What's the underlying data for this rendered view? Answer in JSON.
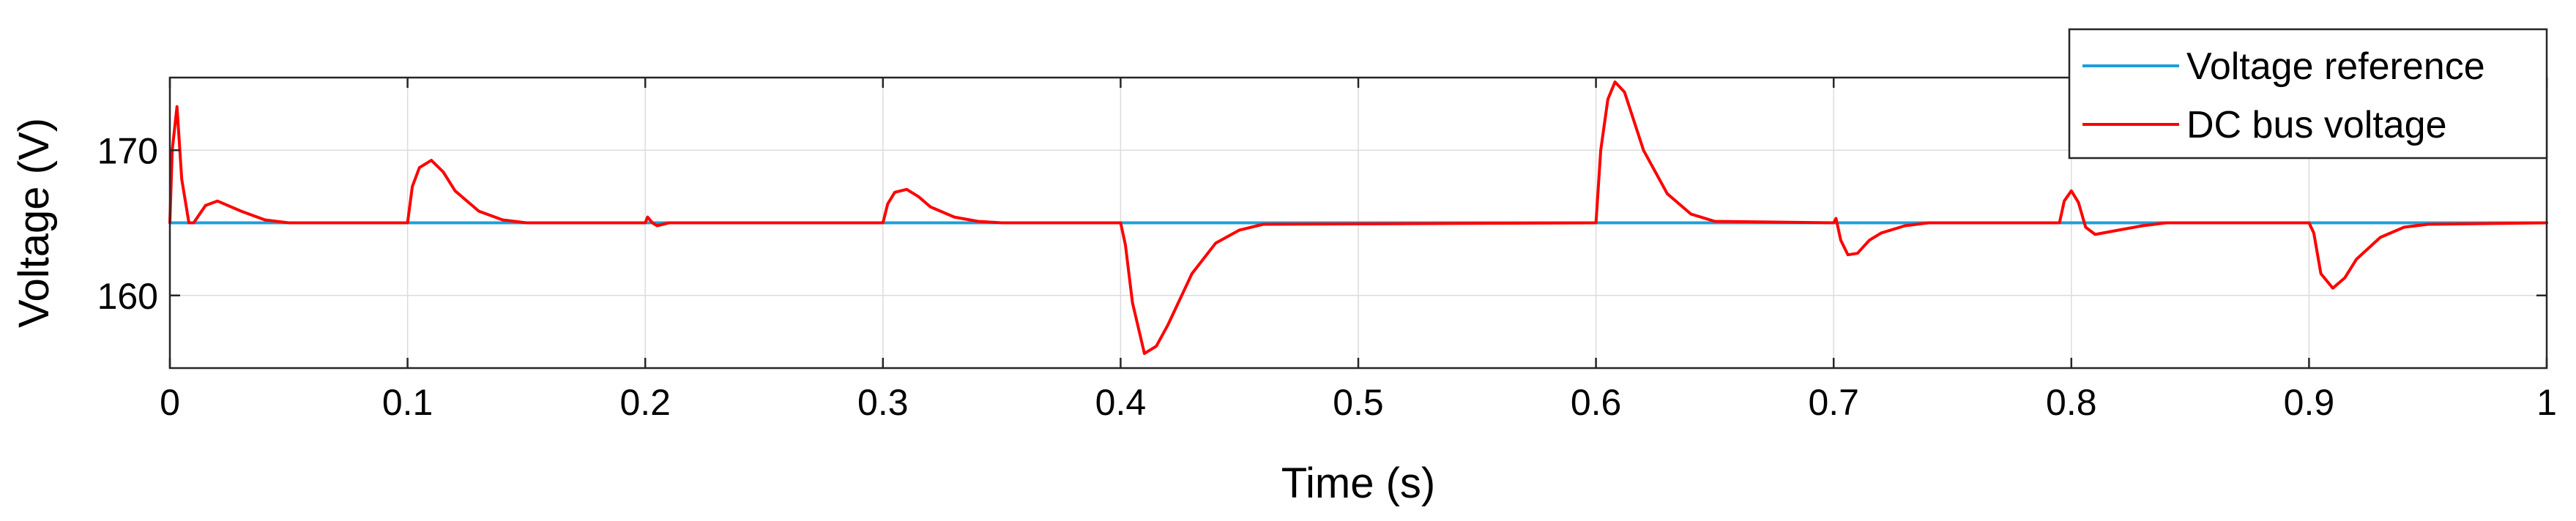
{
  "chart_data": {
    "type": "line",
    "xlabel": "Time (s)",
    "ylabel": "Voltage (V)",
    "xlim": [
      0,
      1
    ],
    "ylim": [
      155,
      175
    ],
    "grid": true,
    "legend_position": "top-right",
    "x_ticks": [
      "0",
      "0.1",
      "0.2",
      "0.3",
      "0.4",
      "0.5",
      "0.6",
      "0.7",
      "0.8",
      "0.9",
      "1"
    ],
    "y_ticks": [
      "160",
      "170"
    ],
    "series": [
      {
        "name": "Voltage reference",
        "color": "#1E9FD8",
        "x": [
          0,
          1
        ],
        "y": [
          165,
          165
        ]
      },
      {
        "name": "DC bus voltage",
        "color": "#FF0000",
        "x": [
          0,
          0.001,
          0.003,
          0.005,
          0.008,
          0.01,
          0.015,
          0.02,
          0.03,
          0.04,
          0.05,
          0.1,
          0.102,
          0.105,
          0.11,
          0.115,
          0.12,
          0.13,
          0.14,
          0.15,
          0.2,
          0.201,
          0.203,
          0.205,
          0.21,
          0.3,
          0.302,
          0.305,
          0.31,
          0.315,
          0.32,
          0.33,
          0.34,
          0.35,
          0.4,
          0.402,
          0.405,
          0.41,
          0.415,
          0.42,
          0.43,
          0.44,
          0.45,
          0.46,
          0.6,
          0.602,
          0.605,
          0.608,
          0.612,
          0.615,
          0.62,
          0.63,
          0.64,
          0.65,
          0.7,
          0.701,
          0.703,
          0.706,
          0.71,
          0.715,
          0.72,
          0.73,
          0.74,
          0.75,
          0.795,
          0.797,
          0.8,
          0.803,
          0.806,
          0.81,
          0.82,
          0.83,
          0.84,
          0.85,
          0.9,
          0.902,
          0.905,
          0.91,
          0.915,
          0.92,
          0.93,
          0.94,
          0.95,
          1.0
        ],
        "y": [
          165,
          170,
          173,
          168,
          165,
          165,
          166.2,
          166.5,
          165.8,
          165.2,
          165,
          165,
          167.5,
          168.8,
          169.3,
          168.5,
          167.2,
          165.8,
          165.2,
          165,
          165,
          165.4,
          165,
          164.8,
          165,
          165,
          166.3,
          167.1,
          167.3,
          166.8,
          166.1,
          165.4,
          165.1,
          165,
          165,
          163.5,
          159.5,
          156,
          156.5,
          158,
          161.5,
          163.6,
          164.5,
          164.9,
          165,
          170,
          173.5,
          174.7,
          174,
          172.5,
          170,
          167,
          165.6,
          165.1,
          165,
          165.3,
          163.8,
          162.8,
          162.9,
          163.8,
          164.3,
          164.8,
          165,
          165,
          165,
          166.5,
          167.2,
          166.4,
          164.7,
          164.2,
          164.5,
          164.8,
          165,
          165,
          165,
          164.3,
          161.5,
          160.5,
          161.2,
          162.5,
          164,
          164.7,
          164.9,
          165
        ]
      }
    ]
  }
}
